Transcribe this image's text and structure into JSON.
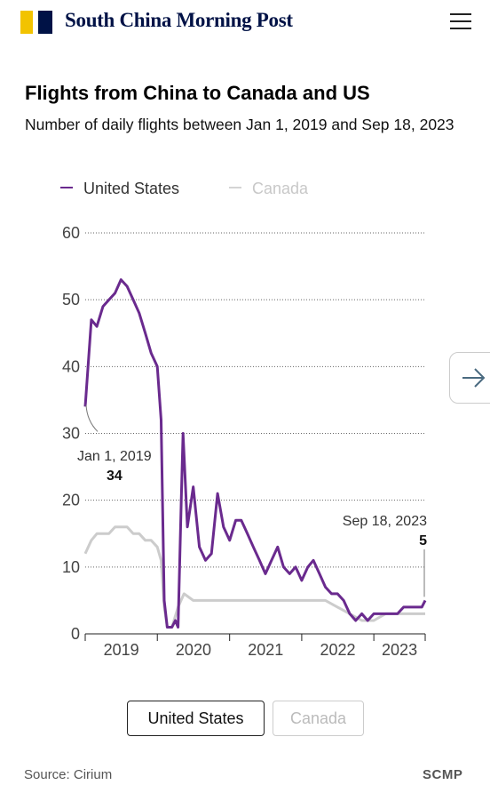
{
  "header": {
    "logo_text": "South China Morning Post",
    "brand_colors": {
      "yellow": "#f2c300",
      "navy": "#001246"
    }
  },
  "chart_data": {
    "type": "line",
    "title": "Flights from China to Canada and US",
    "subtitle": "Number of daily flights between Jan 1, 2019 and Sep 18, 2023",
    "x_range": [
      "2019-01-01",
      "2023-09-18"
    ],
    "x_ticks": [
      "2019",
      "2020",
      "2021",
      "2022",
      "2023"
    ],
    "y_ticks": [
      0,
      10,
      20,
      30,
      40,
      50,
      60
    ],
    "ylim": [
      0,
      60
    ],
    "grid": true,
    "legend_placement": "top-left",
    "series": [
      {
        "name": "United States",
        "color": "#6a2a8e",
        "points": [
          [
            "2019-01-01",
            34
          ],
          [
            "2019-02-01",
            47
          ],
          [
            "2019-03-01",
            46
          ],
          [
            "2019-04-01",
            49
          ],
          [
            "2019-05-01",
            50
          ],
          [
            "2019-06-01",
            51
          ],
          [
            "2019-07-01",
            53
          ],
          [
            "2019-08-01",
            52
          ],
          [
            "2019-09-01",
            50
          ],
          [
            "2019-10-01",
            48
          ],
          [
            "2019-11-01",
            45
          ],
          [
            "2019-12-01",
            42
          ],
          [
            "2020-01-01",
            40
          ],
          [
            "2020-01-20",
            32
          ],
          [
            "2020-02-05",
            5
          ],
          [
            "2020-02-20",
            1
          ],
          [
            "2020-03-15",
            1
          ],
          [
            "2020-04-01",
            2
          ],
          [
            "2020-04-15",
            1
          ],
          [
            "2020-05-01",
            20
          ],
          [
            "2020-05-10",
            30
          ],
          [
            "2020-06-01",
            16
          ],
          [
            "2020-07-01",
            22
          ],
          [
            "2020-08-01",
            13
          ],
          [
            "2020-09-01",
            11
          ],
          [
            "2020-10-01",
            12
          ],
          [
            "2020-11-01",
            21
          ],
          [
            "2020-12-01",
            16
          ],
          [
            "2021-01-01",
            14
          ],
          [
            "2021-02-01",
            17
          ],
          [
            "2021-03-01",
            17
          ],
          [
            "2021-04-01",
            15
          ],
          [
            "2021-05-01",
            13
          ],
          [
            "2021-06-01",
            11
          ],
          [
            "2021-07-01",
            9
          ],
          [
            "2021-08-01",
            11
          ],
          [
            "2021-09-01",
            13
          ],
          [
            "2021-10-01",
            10
          ],
          [
            "2021-11-01",
            9
          ],
          [
            "2021-12-01",
            10
          ],
          [
            "2022-01-01",
            8
          ],
          [
            "2022-02-01",
            10
          ],
          [
            "2022-03-01",
            11
          ],
          [
            "2022-04-01",
            9
          ],
          [
            "2022-05-01",
            7
          ],
          [
            "2022-06-01",
            6
          ],
          [
            "2022-07-01",
            6
          ],
          [
            "2022-08-01",
            5
          ],
          [
            "2022-09-01",
            3
          ],
          [
            "2022-10-01",
            2
          ],
          [
            "2022-11-01",
            3
          ],
          [
            "2022-12-01",
            2
          ],
          [
            "2023-01-01",
            3
          ],
          [
            "2023-02-01",
            3
          ],
          [
            "2023-03-01",
            3
          ],
          [
            "2023-04-01",
            3
          ],
          [
            "2023-05-01",
            3
          ],
          [
            "2023-06-01",
            4
          ],
          [
            "2023-07-01",
            4
          ],
          [
            "2023-08-01",
            4
          ],
          [
            "2023-09-01",
            4
          ],
          [
            "2023-09-18",
            5
          ]
        ]
      },
      {
        "name": "Canada",
        "color": "#cccccc",
        "points": [
          [
            "2019-01-01",
            12
          ],
          [
            "2019-02-01",
            14
          ],
          [
            "2019-03-01",
            15
          ],
          [
            "2019-04-01",
            15
          ],
          [
            "2019-05-01",
            15
          ],
          [
            "2019-06-01",
            16
          ],
          [
            "2019-07-01",
            16
          ],
          [
            "2019-08-01",
            16
          ],
          [
            "2019-09-01",
            15
          ],
          [
            "2019-10-01",
            15
          ],
          [
            "2019-11-01",
            14
          ],
          [
            "2019-12-01",
            14
          ],
          [
            "2020-01-01",
            13
          ],
          [
            "2020-01-20",
            11
          ],
          [
            "2020-02-05",
            4
          ],
          [
            "2020-02-20",
            1
          ],
          [
            "2020-03-15",
            1
          ],
          [
            "2020-04-15",
            4
          ],
          [
            "2020-05-15",
            6
          ],
          [
            "2020-07-01",
            5
          ],
          [
            "2020-09-01",
            5
          ],
          [
            "2020-11-01",
            5
          ],
          [
            "2021-01-01",
            5
          ],
          [
            "2021-03-01",
            5
          ],
          [
            "2021-05-01",
            5
          ],
          [
            "2021-07-01",
            5
          ],
          [
            "2021-09-01",
            5
          ],
          [
            "2021-11-01",
            5
          ],
          [
            "2022-01-01",
            5
          ],
          [
            "2022-03-01",
            5
          ],
          [
            "2022-05-01",
            5
          ],
          [
            "2022-07-01",
            4
          ],
          [
            "2022-09-01",
            3
          ],
          [
            "2022-11-01",
            2
          ],
          [
            "2023-01-01",
            2
          ],
          [
            "2023-03-01",
            3
          ],
          [
            "2023-05-01",
            3
          ],
          [
            "2023-07-01",
            3
          ],
          [
            "2023-09-18",
            3
          ]
        ]
      }
    ],
    "annotations": [
      {
        "date": "2019-01-01",
        "value": 34,
        "label": "Jan 1, 2019",
        "value_label": "34"
      },
      {
        "date": "2023-09-18",
        "value": 5,
        "label": "Sep 18, 2023",
        "value_label": "5"
      }
    ]
  },
  "controls": {
    "next_icon": "arrow-right-icon",
    "buttons": [
      {
        "label": "United States",
        "active": true
      },
      {
        "label": "Canada",
        "active": false
      }
    ]
  },
  "footer": {
    "source": "Source: Cirium",
    "brand": "SCMP"
  }
}
